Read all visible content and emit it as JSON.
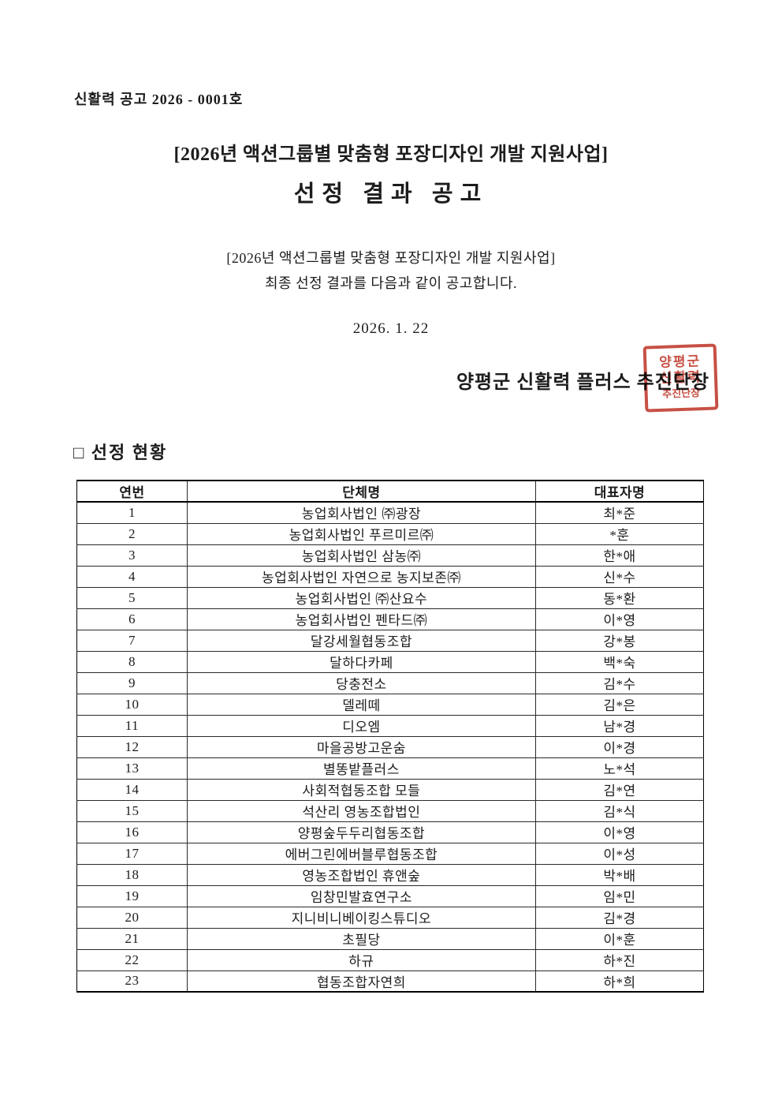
{
  "doc": {
    "number": "신활력 공고 2026 - 0001호",
    "title_line1": "[2026년 액션그룹별 맞춤형 포장디자인 개발 지원사업]",
    "title_line2": "선정 결과 공고",
    "body_line1": "[2026년 액션그룹별 맞춤형 포장디자인 개발 지원사업]",
    "body_line2": "최종 선정 결과를 다음과 같이 공고합니다.",
    "date": "2026. 1. 22",
    "signature": "양평군 신활력 플러스 추진단장",
    "section_title": "□ 선정 현황"
  },
  "seal": {
    "color": "#c0392b",
    "lines": [
      "양평군",
      "신활력",
      "추진단장"
    ]
  },
  "table": {
    "headers": [
      "연번",
      "단체명",
      "대표자명"
    ],
    "rows": [
      {
        "no": "1",
        "org": "농업회사법인 ㈜광장",
        "rep": "최*준"
      },
      {
        "no": "2",
        "org": "농업회사법인 푸르미르㈜",
        "rep": "*훈"
      },
      {
        "no": "3",
        "org": "농업회사법인 삼농㈜",
        "rep": "한*애"
      },
      {
        "no": "4",
        "org": "농업회사법인 자연으로 농지보존㈜",
        "rep": "신*수"
      },
      {
        "no": "5",
        "org": "농업회사법인 ㈜산요수",
        "rep": "동*환"
      },
      {
        "no": "6",
        "org": "농업회사법인 펜타드㈜",
        "rep": "이*영"
      },
      {
        "no": "7",
        "org": "달강세월협동조합",
        "rep": "강*봉"
      },
      {
        "no": "8",
        "org": "달하다카페",
        "rep": "백*숙"
      },
      {
        "no": "9",
        "org": "당충전소",
        "rep": "김*수"
      },
      {
        "no": "10",
        "org": "델레떼",
        "rep": "김*은"
      },
      {
        "no": "11",
        "org": "디오엠",
        "rep": "남*경"
      },
      {
        "no": "12",
        "org": "마을공방고운숨",
        "rep": "이*경"
      },
      {
        "no": "13",
        "org": "별똥밭플러스",
        "rep": "노*석"
      },
      {
        "no": "14",
        "org": "사회적협동조합 모들",
        "rep": "김*연"
      },
      {
        "no": "15",
        "org": "석산리 영농조합법인",
        "rep": "김*식"
      },
      {
        "no": "16",
        "org": "양평숲두두리협동조합",
        "rep": "이*영"
      },
      {
        "no": "17",
        "org": "에버그린에버블루협동조합",
        "rep": "이*성"
      },
      {
        "no": "18",
        "org": "영농조합법인 휴앤숲",
        "rep": "박*배"
      },
      {
        "no": "19",
        "org": "임창민발효연구소",
        "rep": "임*민"
      },
      {
        "no": "20",
        "org": "지니비니베이킹스튜디오",
        "rep": "김*경"
      },
      {
        "no": "21",
        "org": "초필당",
        "rep": "이*훈"
      },
      {
        "no": "22",
        "org": "하규",
        "rep": "하*진"
      },
      {
        "no": "23",
        "org": "협동조합자연희",
        "rep": "하*희"
      }
    ]
  }
}
